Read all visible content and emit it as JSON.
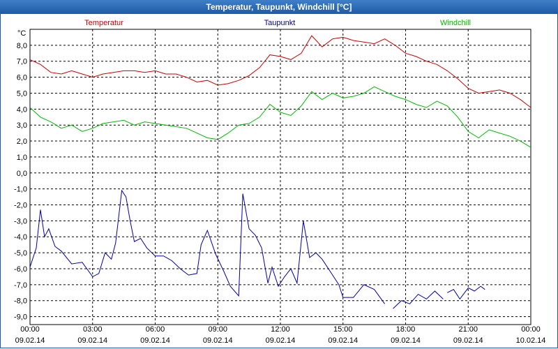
{
  "window": {
    "title": "Temperatur, Taupunkt, Windchill [°C]"
  },
  "chart_data": {
    "type": "line",
    "title": "Temperatur, Taupunkt, Windchill [°C]",
    "ylabel": "°C",
    "ylim": [
      -9.5,
      9.0
    ],
    "xlim": [
      0,
      24
    ],
    "grid": true,
    "yticks": [
      "8,0",
      "7,0",
      "6,0",
      "5,0",
      "4,0",
      "3,0",
      "2,0",
      "1,0",
      "0,0",
      "-1,0",
      "-2,0",
      "-3,0",
      "-4,0",
      "-5,0",
      "-6,0",
      "-7,0",
      "-8,0",
      "-9,0"
    ],
    "ytick_values": [
      8,
      7,
      6,
      5,
      4,
      3,
      2,
      1,
      0,
      -1,
      -2,
      -3,
      -4,
      -5,
      -6,
      -7,
      -8,
      -9
    ],
    "xticks": [
      {
        "time": "00:00",
        "date": "09.02.14"
      },
      {
        "time": "03:00",
        "date": "09.02.14"
      },
      {
        "time": "06:00",
        "date": "09.02.14"
      },
      {
        "time": "09:00",
        "date": "09.02.14"
      },
      {
        "time": "12:00",
        "date": "09.02.14"
      },
      {
        "time": "15:00",
        "date": "09.02.14"
      },
      {
        "time": "18:00",
        "date": "09.02.14"
      },
      {
        "time": "21:00",
        "date": "09.02.14"
      },
      {
        "time": "00:00",
        "date": "10.02.14"
      }
    ],
    "series": [
      {
        "name": "Temperatur",
        "color": "#cc0000",
        "points": [
          [
            0,
            7.1
          ],
          [
            0.5,
            6.8
          ],
          [
            1,
            6.3
          ],
          [
            1.5,
            6.2
          ],
          [
            2,
            6.4
          ],
          [
            2.5,
            6.2
          ],
          [
            3,
            6.0
          ],
          [
            3.5,
            6.2
          ],
          [
            4,
            6.3
          ],
          [
            4.5,
            6.4
          ],
          [
            5,
            6.4
          ],
          [
            5.5,
            6.3
          ],
          [
            6,
            6.4
          ],
          [
            6.5,
            6.2
          ],
          [
            7,
            6.2
          ],
          [
            7.5,
            6.0
          ],
          [
            8,
            5.7
          ],
          [
            8.5,
            5.8
          ],
          [
            9,
            5.5
          ],
          [
            9.5,
            5.6
          ],
          [
            10,
            5.8
          ],
          [
            10.5,
            6.1
          ],
          [
            11,
            6.6
          ],
          [
            11.5,
            7.4
          ],
          [
            12,
            7.3
          ],
          [
            12.5,
            7.1
          ],
          [
            13,
            7.5
          ],
          [
            13.5,
            8.6
          ],
          [
            14,
            7.9
          ],
          [
            14.5,
            8.4
          ],
          [
            15,
            8.5
          ],
          [
            15.5,
            8.3
          ],
          [
            16,
            8.2
          ],
          [
            16.5,
            8.1
          ],
          [
            17,
            8.4
          ],
          [
            17.5,
            8.0
          ],
          [
            18,
            7.5
          ],
          [
            18.5,
            7.3
          ],
          [
            19,
            7.0
          ],
          [
            19.5,
            6.8
          ],
          [
            20,
            6.4
          ],
          [
            20.5,
            5.9
          ],
          [
            21,
            5.3
          ],
          [
            21.5,
            5.0
          ],
          [
            22,
            5.1
          ],
          [
            22.5,
            5.2
          ],
          [
            23,
            5.0
          ],
          [
            23.5,
            4.6
          ],
          [
            24,
            4.1
          ]
        ]
      },
      {
        "name": "Taupunkt",
        "color": "#0000aa",
        "segments": [
          [
            [
              0,
              -5.9
            ],
            [
              0.3,
              -4.7
            ],
            [
              0.5,
              -2.3
            ],
            [
              0.7,
              -4.0
            ],
            [
              0.9,
              -3.5
            ],
            [
              1.2,
              -4.6
            ],
            [
              1.5,
              -4.9
            ],
            [
              2,
              -5.7
            ],
            [
              2.5,
              -5.6
            ],
            [
              3,
              -6.5
            ],
            [
              3.3,
              -6.3
            ],
            [
              3.6,
              -5.0
            ],
            [
              3.9,
              -5.4
            ],
            [
              4.1,
              -4.4
            ],
            [
              4.4,
              -1.1
            ],
            [
              4.6,
              -1.5
            ],
            [
              4.8,
              -3.0
            ],
            [
              5,
              -4.3
            ],
            [
              5.3,
              -4.1
            ],
            [
              5.6,
              -4.7
            ],
            [
              6,
              -5.2
            ],
            [
              6.4,
              -5.2
            ],
            [
              6.8,
              -5.5
            ],
            [
              7.2,
              -6.0
            ],
            [
              7.6,
              -6.4
            ],
            [
              8.0,
              -6.3
            ],
            [
              8.2,
              -4.5
            ],
            [
              8.5,
              -3.6
            ],
            [
              8.9,
              -5.1
            ],
            [
              9.3,
              -6.2
            ],
            [
              9.6,
              -7.1
            ],
            [
              10,
              -7.7
            ],
            [
              10.2,
              -1.3
            ],
            [
              10.5,
              -3.5
            ],
            [
              10.8,
              -3.9
            ],
            [
              11.1,
              -4.7
            ],
            [
              11.4,
              -6.9
            ],
            [
              11.6,
              -5.9
            ],
            [
              11.9,
              -7.1
            ],
            [
              12.2,
              -6.5
            ],
            [
              12.5,
              -6.0
            ],
            [
              12.8,
              -6.9
            ],
            [
              13.1,
              -3.0
            ],
            [
              13.4,
              -5.3
            ],
            [
              13.7,
              -5.0
            ],
            [
              14,
              -5.4
            ],
            [
              14.4,
              -6.2
            ],
            [
              14.8,
              -7.0
            ],
            [
              15,
              -7.8
            ],
            [
              15.5,
              -7.8
            ],
            [
              16,
              -7.0
            ],
            [
              16.5,
              -7.3
            ],
            [
              17,
              -8.2
            ]
          ],
          [
            [
              17.4,
              -8.5
            ],
            [
              17.8,
              -8.0
            ],
            [
              18.2,
              -8.2
            ],
            [
              18.6,
              -7.6
            ],
            [
              19.0,
              -7.9
            ],
            [
              19.4,
              -7.4
            ],
            [
              19.8,
              -7.9
            ]
          ],
          [
            [
              20.0,
              -7.5
            ],
            [
              20.3,
              -7.3
            ],
            [
              20.6,
              -7.9
            ],
            [
              21.0,
              -7.2
            ],
            [
              21.3,
              -7.4
            ],
            [
              21.6,
              -7.1
            ],
            [
              21.8,
              -7.3
            ]
          ]
        ]
      },
      {
        "name": "Windchill",
        "color": "#00bb00",
        "points": [
          [
            0,
            4.1
          ],
          [
            0.5,
            3.5
          ],
          [
            1,
            3.2
          ],
          [
            1.5,
            2.8
          ],
          [
            2,
            3.0
          ],
          [
            2.5,
            2.6
          ],
          [
            3,
            2.8
          ],
          [
            3.5,
            3.1
          ],
          [
            4,
            3.2
          ],
          [
            4.5,
            3.3
          ],
          [
            5,
            3.0
          ],
          [
            5.5,
            3.2
          ],
          [
            6,
            3.1
          ],
          [
            6.5,
            3.0
          ],
          [
            7,
            2.9
          ],
          [
            7.5,
            2.8
          ],
          [
            8,
            2.5
          ],
          [
            8.5,
            2.2
          ],
          [
            9,
            2.1
          ],
          [
            9.5,
            2.5
          ],
          [
            10,
            3.0
          ],
          [
            10.5,
            3.1
          ],
          [
            11,
            3.5
          ],
          [
            11.5,
            4.3
          ],
          [
            12,
            3.8
          ],
          [
            12.5,
            3.6
          ],
          [
            13,
            4.2
          ],
          [
            13.5,
            5.1
          ],
          [
            14,
            4.6
          ],
          [
            14.5,
            5.0
          ],
          [
            15,
            4.7
          ],
          [
            15.5,
            4.8
          ],
          [
            16,
            5.0
          ],
          [
            16.5,
            5.4
          ],
          [
            17,
            5.1
          ],
          [
            17.5,
            4.8
          ],
          [
            18,
            4.6
          ],
          [
            18.5,
            4.3
          ],
          [
            19,
            4.1
          ],
          [
            19.5,
            4.5
          ],
          [
            20,
            4.2
          ],
          [
            20.5,
            3.5
          ],
          [
            21,
            2.6
          ],
          [
            21.5,
            2.2
          ],
          [
            22,
            2.7
          ],
          [
            22.5,
            2.5
          ],
          [
            23,
            2.3
          ],
          [
            23.5,
            2.0
          ],
          [
            24,
            1.6
          ]
        ]
      }
    ]
  }
}
